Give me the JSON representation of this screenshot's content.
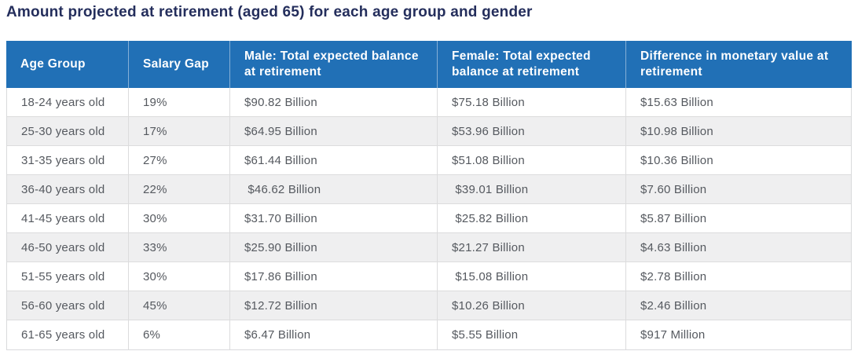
{
  "page_title": "Amount projected at retirement (aged 65) for each age group and gender",
  "colors": {
    "title_text": "#242e5c",
    "header_bg": "#2170b6",
    "header_text": "#ffffff",
    "body_text": "#55595f",
    "row_stripe": "#efeff0",
    "grid_border": "#dcdcdd",
    "bottom_divider": "#ccd1da"
  },
  "chart_data": {
    "type": "table",
    "title": "Amount projected at retirement (aged 65) for each age group and gender",
    "columns": [
      "Age Group",
      "Salary Gap",
      "Male: Total expected balance at retirement",
      "Female: Total expected balance at retirement",
      "Difference in monetary value at retirement"
    ],
    "rows": [
      {
        "age_group": "18-24 years old",
        "salary_gap": "19%",
        "male_balance": "$90.82 Billion",
        "female_balance": "$75.18 Billion",
        "difference": "$15.63 Billion"
      },
      {
        "age_group": "25-30 years old",
        "salary_gap": "17%",
        "male_balance": "$64.95 Billion",
        "female_balance": "$53.96 Billion",
        "difference": "$10.98 Billion"
      },
      {
        "age_group": "31-35 years old",
        "salary_gap": "27%",
        "male_balance": "$61.44 Billion",
        "female_balance": "$51.08 Billion",
        "difference": "$10.36 Billion"
      },
      {
        "age_group": "36-40 years old",
        "salary_gap": "22%",
        "male_balance": " $46.62 Billion",
        "female_balance": " $39.01 Billion",
        "difference": "$7.60 Billion"
      },
      {
        "age_group": "41-45 years old",
        "salary_gap": "30%",
        "male_balance": "$31.70 Billion",
        "female_balance": " $25.82 Billion",
        "difference": "$5.87 Billion"
      },
      {
        "age_group": "46-50 years old",
        "salary_gap": "33%",
        "male_balance": "$25.90 Billion",
        "female_balance": "$21.27 Billion",
        "difference": "$4.63 Billion"
      },
      {
        "age_group": "51-55 years old",
        "salary_gap": "30%",
        "male_balance": "$17.86 Billion",
        "female_balance": " $15.08 Billion",
        "difference": "$2.78 Billion"
      },
      {
        "age_group": "56-60 years old",
        "salary_gap": "45%",
        "male_balance": "$12.72 Billion",
        "female_balance": "$10.26 Billion",
        "difference": "$2.46 Billion"
      },
      {
        "age_group": "61-65 years old",
        "salary_gap": "6%",
        "male_balance": "$6.47 Billion",
        "female_balance": "$5.55 Billion",
        "difference": "$917 Million"
      }
    ]
  }
}
